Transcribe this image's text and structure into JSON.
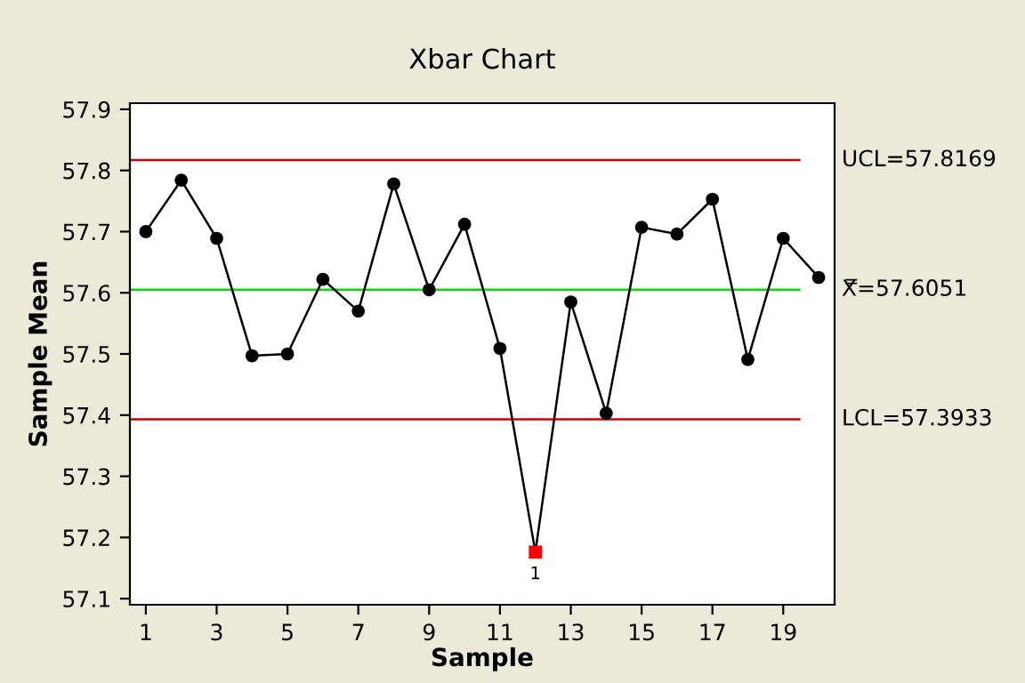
{
  "chart_data": {
    "type": "line",
    "title": "Xbar Chart",
    "xlabel": "Sample",
    "ylabel": "Sample Mean",
    "x": [
      1,
      2,
      3,
      4,
      5,
      6,
      7,
      8,
      9,
      10,
      11,
      12,
      13,
      14,
      15,
      16,
      17,
      18,
      19,
      20
    ],
    "series": [
      {
        "color": "#000000",
        "marker": "none",
        "values": [
          57.7,
          57.784,
          57.689,
          57.497,
          57.5,
          57.622,
          57.57,
          57.778,
          57.605,
          57.712,
          57.509,
          57.176,
          57.585,
          57.403,
          57.707,
          57.696,
          57.753,
          57.491,
          57.689,
          57.625
        ]
      },
      {
        "type": "scatter",
        "color": "#000000",
        "marker": "circle",
        "x": [
          1,
          2,
          3,
          4,
          5,
          6,
          7,
          8,
          9,
          10,
          11,
          13,
          14,
          15,
          16,
          17,
          18,
          19,
          20
        ],
        "values": [
          57.7,
          57.784,
          57.689,
          57.497,
          57.5,
          57.622,
          57.57,
          57.778,
          57.605,
          57.712,
          57.509,
          57.585,
          57.403,
          57.707,
          57.696,
          57.753,
          57.491,
          57.689,
          57.625
        ]
      },
      {
        "type": "scatter",
        "color": "#ff0000",
        "marker": "square",
        "x": [
          12
        ],
        "values": [
          57.176
        ]
      }
    ],
    "annotations": [
      {
        "text": "1",
        "x": 12,
        "y": 57.176
      }
    ],
    "ref_lines": [
      {
        "axis": "y",
        "value": 57.8169,
        "label": "UCL=57.8169",
        "color": "#cc0000"
      },
      {
        "axis": "y",
        "value": 57.6051,
        "label": "X̿=57.6051",
        "color": "#00dd00"
      },
      {
        "axis": "y",
        "value": 57.3933,
        "label": "LCL=57.3933",
        "color": "#cc0000"
      }
    ],
    "xlim": [
      0.55,
      20.45
    ],
    "xticks": [
      1,
      3,
      5,
      7,
      9,
      11,
      13,
      15,
      17,
      19
    ],
    "ylim": [
      57.09,
      57.91
    ],
    "yticks": [
      57.1,
      57.2,
      57.3,
      57.4,
      57.5,
      57.6,
      57.7,
      57.8,
      57.9
    ],
    "grid": false,
    "legend": false
  }
}
